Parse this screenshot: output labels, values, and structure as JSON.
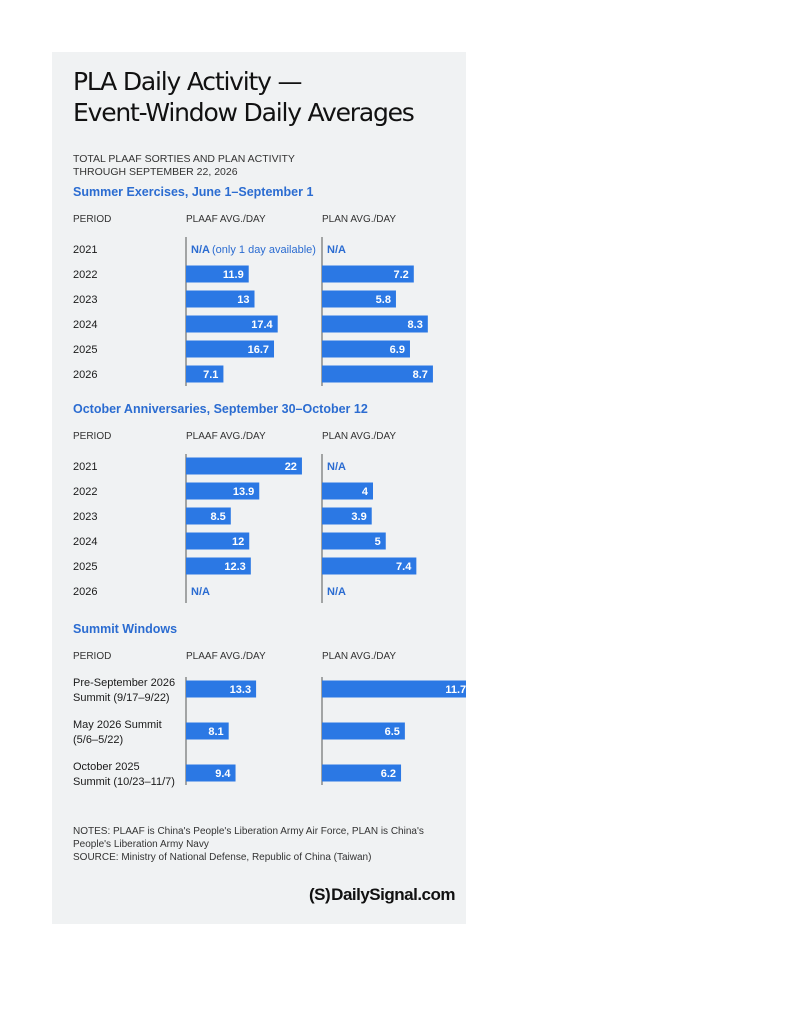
{
  "title_lines": [
    "PLA Daily Activity —",
    "Event-Window Daily Averages"
  ],
  "subtitle_lines": [
    "Total PLAAF sorties and PLAN activity",
    "through September 22, 2026"
  ],
  "notes": {
    "notes_lines": [
      "NOTES: PLAAF is China's People's Liberation Army Air Force, PLAN is China's",
      "People's Liberation Army Navy"
    ],
    "source": "SOURCE: Ministry of National Defense, Republic of China (Taiwan)"
  },
  "brand": {
    "mark": "(S)",
    "name": "DailySignal.com"
  },
  "colors": {
    "bar": "#2b78e4",
    "heading": "#2b6cd1",
    "axis": "#555555",
    "na": "#2b6cd1"
  },
  "chart_data": [
    {
      "type": "bar",
      "orientation": "horizontal",
      "title": "Summer Exercises, June 1–September 1",
      "category_header": "PERIOD",
      "categories": [
        [
          "2021"
        ],
        [
          "2022"
        ],
        [
          "2023"
        ],
        [
          "2024"
        ],
        [
          "2025"
        ],
        [
          "2026"
        ]
      ],
      "series": [
        {
          "name": "PLAAF AVG./DAY",
          "values": [
            null,
            11.9,
            13,
            17.4,
            16.7,
            7.1
          ],
          "missing_labels": [
            "N/A",
            null,
            null,
            null,
            null,
            null
          ],
          "missing_notes": [
            "(only 1 day available)",
            null,
            null,
            null,
            null,
            null
          ]
        },
        {
          "name": "PLAN AVG./DAY",
          "values": [
            null,
            7.2,
            5.8,
            8.3,
            6.9,
            8.7
          ],
          "missing_labels": [
            "N/A",
            null,
            null,
            null,
            null,
            null
          ]
        }
      ]
    },
    {
      "type": "bar",
      "orientation": "horizontal",
      "title": "October Anniversaries, September 30–October 12",
      "category_header": "PERIOD",
      "categories": [
        [
          "2021"
        ],
        [
          "2022"
        ],
        [
          "2023"
        ],
        [
          "2024"
        ],
        [
          "2025"
        ],
        [
          "2026"
        ]
      ],
      "series": [
        {
          "name": "PLAAF AVG./DAY",
          "values": [
            22,
            13.9,
            8.5,
            12,
            12.3,
            null
          ],
          "missing_labels": [
            null,
            null,
            null,
            null,
            null,
            "N/A"
          ]
        },
        {
          "name": "PLAN AVG./DAY",
          "values": [
            null,
            4,
            3.9,
            5,
            7.4,
            null
          ],
          "missing_labels": [
            "N/A",
            null,
            null,
            null,
            null,
            "N/A"
          ]
        }
      ]
    },
    {
      "type": "bar",
      "orientation": "horizontal",
      "title": "Summit Windows",
      "category_header": "PERIOD",
      "categories": [
        [
          "Pre-September 2026",
          "Summit (9/17–9/22)"
        ],
        [
          "May 2026 Summit",
          "(5/6–5/22)"
        ],
        [
          "October 2025",
          "Summit (10/23–11/7)"
        ]
      ],
      "series": [
        {
          "name": "PLAAF AVG./DAY",
          "values": [
            13.3,
            8.1,
            9.4
          ]
        },
        {
          "name": "PLAN AVG./DAY",
          "values": [
            11.7,
            6.5,
            6.2
          ]
        }
      ]
    }
  ]
}
